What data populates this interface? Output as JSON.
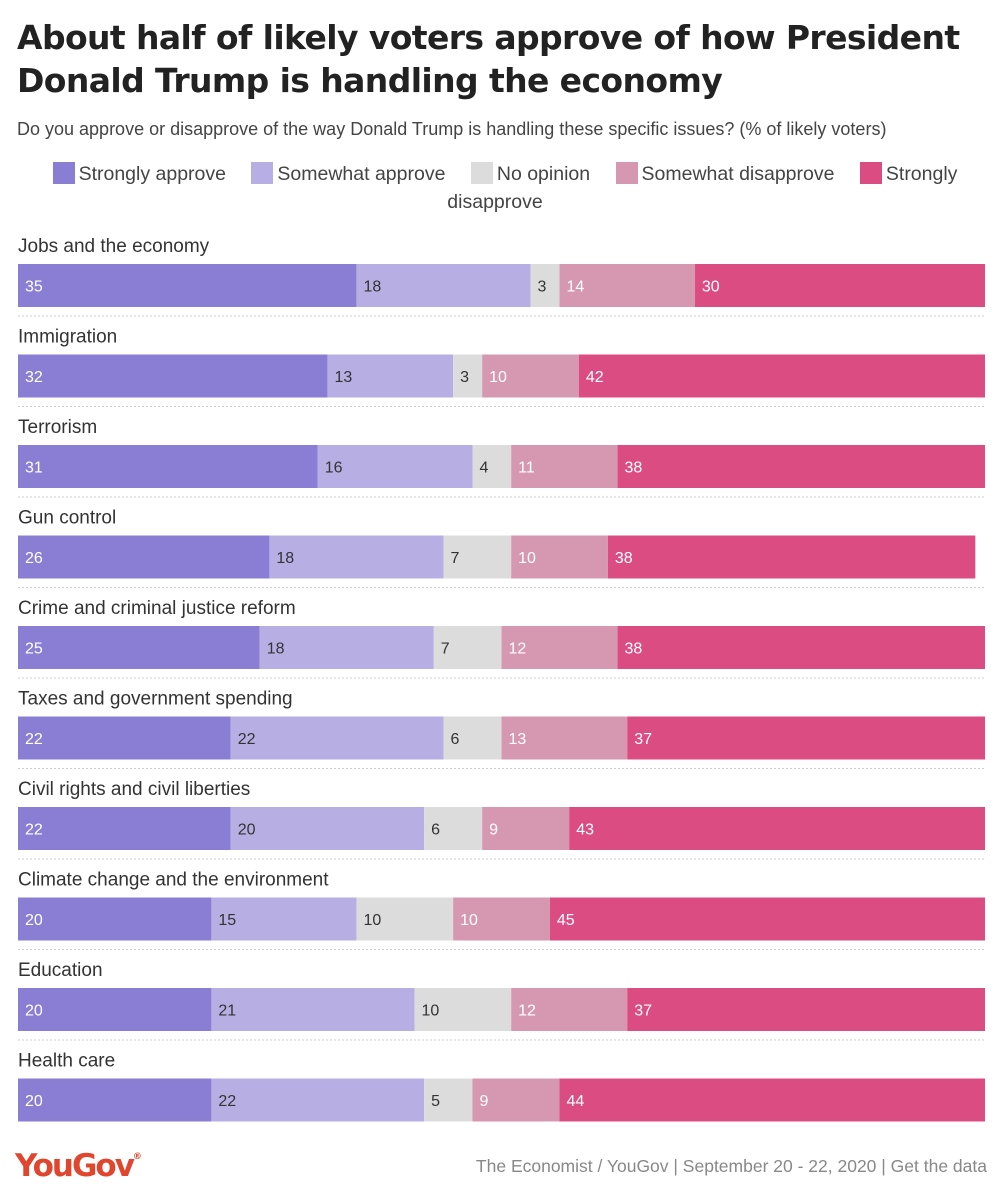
{
  "title": "About half of likely voters approve of how President Donald Trump is handling the economy",
  "subtitle": "Do you approve or disapprove of the way Donald Trump is handling these specific issues? (% of likely voters)",
  "legend": [
    {
      "label": "Strongly approve",
      "color": "#8a7dd4"
    },
    {
      "label": "Somewhat approve",
      "color": "#b7afe3"
    },
    {
      "label": "No opinion",
      "color": "#dcdcdc"
    },
    {
      "label": "Somewhat disapprove",
      "color": "#d698b0"
    },
    {
      "label": "Strongly disapprove",
      "color": "#db4c82"
    }
  ],
  "chart_data": {
    "type": "bar",
    "orientation": "horizontal",
    "stacked": true,
    "categories": [
      "Jobs and the economy",
      "Immigration",
      "Terrorism",
      "Gun control",
      "Crime and criminal justice reform",
      "Taxes and government spending",
      "Civil rights and civil liberties",
      "Climate change and the environment",
      "Education",
      "Health care"
    ],
    "series": [
      {
        "name": "Strongly approve",
        "values": [
          35,
          32,
          31,
          26,
          25,
          22,
          22,
          20,
          20,
          20
        ]
      },
      {
        "name": "Somewhat approve",
        "values": [
          18,
          13,
          16,
          18,
          18,
          22,
          20,
          15,
          21,
          22
        ]
      },
      {
        "name": "No opinion",
        "values": [
          3,
          3,
          4,
          7,
          7,
          6,
          6,
          10,
          10,
          5
        ]
      },
      {
        "name": "Somewhat disapprove",
        "values": [
          14,
          10,
          11,
          10,
          12,
          13,
          9,
          10,
          12,
          9
        ]
      },
      {
        "name": "Strongly disapprove",
        "values": [
          30,
          42,
          38,
          38,
          38,
          37,
          43,
          45,
          37,
          44
        ]
      }
    ],
    "xlim": [
      0,
      100
    ],
    "legend_position": "top",
    "grid": false
  },
  "footer": {
    "logo": "YouGov",
    "source": "The Economist / YouGov | September 20 - 22, 2020 | Get the data"
  }
}
